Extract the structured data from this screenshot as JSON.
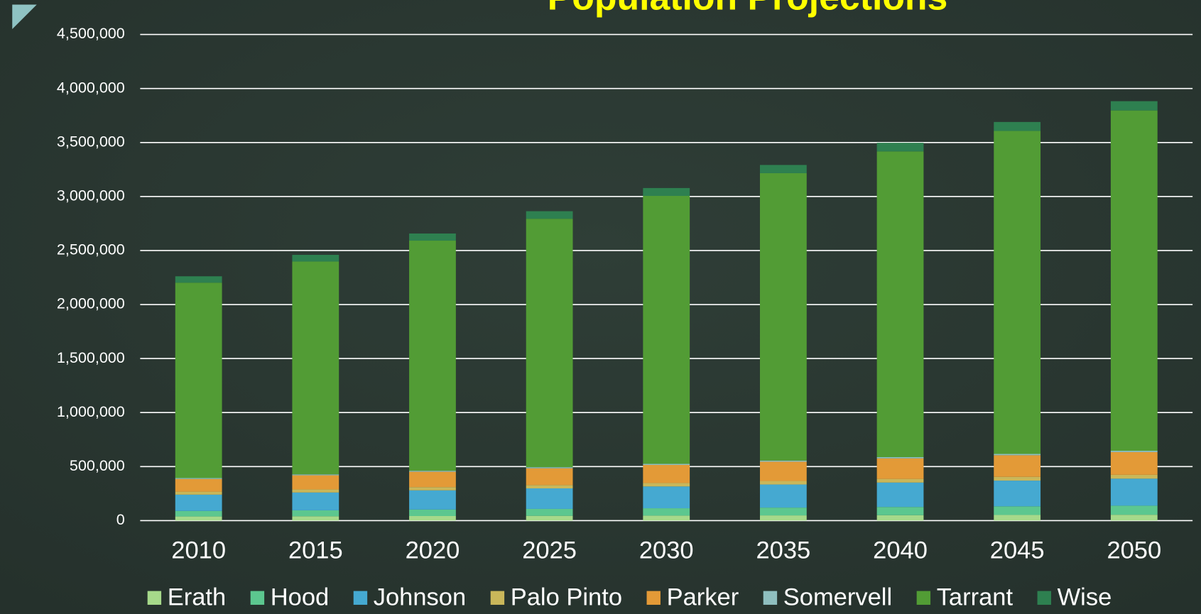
{
  "chart_data": {
    "type": "stacked_bar",
    "title": "Population Projections",
    "categories": [
      "2010",
      "2015",
      "2020",
      "2025",
      "2030",
      "2035",
      "2040",
      "2045",
      "2050"
    ],
    "series": [
      {
        "name": "Erath",
        "color": "#a6d98a",
        "values": [
          38000,
          40000,
          42000,
          44000,
          46000,
          48000,
          50000,
          52000,
          54000
        ]
      },
      {
        "name": "Hood",
        "color": "#5cc78f",
        "values": [
          51000,
          55000,
          60000,
          64000,
          68000,
          72000,
          76000,
          80000,
          84000
        ]
      },
      {
        "name": "Johnson",
        "color": "#45a9d1",
        "values": [
          151000,
          165000,
          178000,
          190000,
          202000,
          214000,
          226000,
          238000,
          250000
        ]
      },
      {
        "name": "Palo Pinto",
        "color": "#c9b75a",
        "values": [
          28000,
          29000,
          30000,
          31000,
          32000,
          33000,
          34000,
          35000,
          36000
        ]
      },
      {
        "name": "Parker",
        "color": "#e39a37",
        "values": [
          117000,
          130000,
          142000,
          155000,
          167000,
          178000,
          190000,
          200000,
          210000
        ]
      },
      {
        "name": "Somervell",
        "color": "#8fbfbf",
        "values": [
          8500,
          9000,
          9500,
          10000,
          10500,
          11000,
          11500,
          12000,
          12500
        ]
      },
      {
        "name": "Tarrant",
        "color": "#529c35",
        "values": [
          1809000,
          1970000,
          2130000,
          2300000,
          2480000,
          2660000,
          2830000,
          2990000,
          3150000
        ]
      },
      {
        "name": "Wise",
        "color": "#2e8050",
        "values": [
          59000,
          62000,
          66000,
          70000,
          73000,
          76000,
          80000,
          83000,
          86000
        ]
      }
    ],
    "ylim": [
      0,
      4500000
    ],
    "yticks": [
      0,
      {
        "value": 500000,
        "label": "500,000"
      },
      {
        "value": 1000000,
        "label": "1,000,000"
      },
      {
        "value": 1500000,
        "label": "1,500,000"
      },
      {
        "value": 2000000,
        "label": "2,000,000"
      },
      {
        "value": 2500000,
        "label": "2,500,000"
      },
      {
        "value": 3000000,
        "label": "3,000,000"
      },
      {
        "value": 3500000,
        "label": "3,500,000"
      },
      {
        "value": 4000000,
        "label": "4,000,000"
      },
      {
        "value": 4500000,
        "label": "4,500,000"
      }
    ],
    "grid": true,
    "legend": "bottom"
  }
}
